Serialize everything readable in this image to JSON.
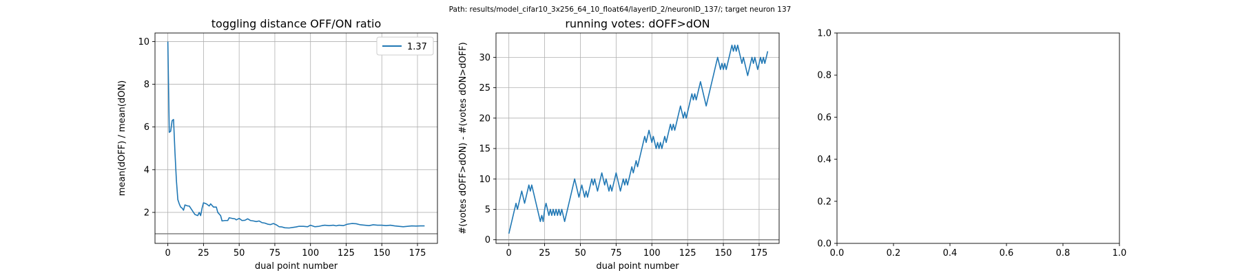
{
  "suptitle": "Path: results/model_cifar10_3x256_64_10_float64/layerID_2/neuronID_137/; target neuron 137",
  "colors": {
    "line": "#1f77b4",
    "grid": "#b0b0b0",
    "hline": "#808080",
    "axis": "#000000"
  },
  "chart_data": [
    {
      "type": "line",
      "title": "toggling distance OFF/ON ratio",
      "xlabel": "dual point number",
      "ylabel": "mean(dOFF) / mean(dON)",
      "xlim": [
        -9,
        189
      ],
      "ylim": [
        0.55,
        10.4
      ],
      "xticks": [
        0,
        25,
        50,
        75,
        100,
        125,
        150,
        175
      ],
      "yticks": [
        2,
        4,
        6,
        8,
        10
      ],
      "grid": true,
      "hline": 1.0,
      "legend": {
        "position": "top-right",
        "entries": [
          "1.37"
        ]
      },
      "series": [
        {
          "name": "1.37",
          "points": [
            [
              0,
              10.0
            ],
            [
              1,
              5.75
            ],
            [
              2,
              5.8
            ],
            [
              3,
              6.3
            ],
            [
              4,
              6.35
            ],
            [
              5,
              4.8
            ],
            [
              6,
              3.5
            ],
            [
              7,
              2.6
            ],
            [
              8,
              2.4
            ],
            [
              9,
              2.25
            ],
            [
              10,
              2.2
            ],
            [
              11,
              2.1
            ],
            [
              12,
              2.35
            ],
            [
              14,
              2.3
            ],
            [
              15,
              2.3
            ],
            [
              17,
              2.1
            ],
            [
              19,
              1.9
            ],
            [
              21,
              1.85
            ],
            [
              22,
              2.0
            ],
            [
              23,
              1.85
            ],
            [
              24,
              2.2
            ],
            [
              25,
              2.45
            ],
            [
              27,
              2.4
            ],
            [
              29,
              2.3
            ],
            [
              30,
              2.4
            ],
            [
              32,
              2.25
            ],
            [
              34,
              2.25
            ],
            [
              35,
              2.0
            ],
            [
              37,
              1.85
            ],
            [
              38,
              1.6
            ],
            [
              40,
              1.62
            ],
            [
              42,
              1.62
            ],
            [
              43,
              1.75
            ],
            [
              45,
              1.72
            ],
            [
              47,
              1.7
            ],
            [
              48,
              1.65
            ],
            [
              50,
              1.72
            ],
            [
              52,
              1.62
            ],
            [
              54,
              1.63
            ],
            [
              56,
              1.7
            ],
            [
              58,
              1.62
            ],
            [
              60,
              1.6
            ],
            [
              62,
              1.57
            ],
            [
              64,
              1.6
            ],
            [
              66,
              1.52
            ],
            [
              68,
              1.5
            ],
            [
              70,
              1.45
            ],
            [
              72,
              1.43
            ],
            [
              74,
              1.48
            ],
            [
              76,
              1.42
            ],
            [
              78,
              1.33
            ],
            [
              80,
              1.32
            ],
            [
              82,
              1.28
            ],
            [
              85,
              1.27
            ],
            [
              88,
              1.3
            ],
            [
              90,
              1.32
            ],
            [
              92,
              1.35
            ],
            [
              95,
              1.35
            ],
            [
              98,
              1.33
            ],
            [
              100,
              1.4
            ],
            [
              103,
              1.33
            ],
            [
              106,
              1.35
            ],
            [
              108,
              1.38
            ],
            [
              110,
              1.4
            ],
            [
              113,
              1.38
            ],
            [
              116,
              1.4
            ],
            [
              118,
              1.37
            ],
            [
              120,
              1.4
            ],
            [
              123,
              1.38
            ],
            [
              126,
              1.45
            ],
            [
              129,
              1.48
            ],
            [
              132,
              1.47
            ],
            [
              135,
              1.42
            ],
            [
              138,
              1.4
            ],
            [
              141,
              1.38
            ],
            [
              144,
              1.42
            ],
            [
              147,
              1.4
            ],
            [
              150,
              1.4
            ],
            [
              153,
              1.38
            ],
            [
              156,
              1.4
            ],
            [
              159,
              1.37
            ],
            [
              162,
              1.35
            ],
            [
              165,
              1.33
            ],
            [
              168,
              1.35
            ],
            [
              171,
              1.37
            ],
            [
              174,
              1.36
            ],
            [
              177,
              1.37
            ],
            [
              180,
              1.37
            ]
          ]
        }
      ]
    },
    {
      "type": "line",
      "title": "running votes: dOFF>dON",
      "xlabel": "dual point number",
      "ylabel": "#(votes dOFF>dON) - #(votes dON>dOFF)",
      "xlim": [
        -9,
        189
      ],
      "ylim": [
        -0.6,
        34
      ],
      "xticks": [
        0,
        25,
        50,
        75,
        100,
        125,
        150,
        175
      ],
      "yticks": [
        0,
        5,
        10,
        15,
        20,
        25,
        30
      ],
      "grid": true,
      "hline": 0,
      "series": [
        {
          "points": [
            [
              0,
              1
            ],
            [
              2,
              3
            ],
            [
              4,
              5
            ],
            [
              5,
              6
            ],
            [
              6,
              5
            ],
            [
              7,
              6
            ],
            [
              8,
              7
            ],
            [
              9,
              8
            ],
            [
              10,
              7
            ],
            [
              11,
              6
            ],
            [
              12,
              7
            ],
            [
              13,
              8
            ],
            [
              14,
              9
            ],
            [
              15,
              8
            ],
            [
              16,
              9
            ],
            [
              17,
              8
            ],
            [
              18,
              7
            ],
            [
              19,
              6
            ],
            [
              20,
              5
            ],
            [
              21,
              4
            ],
            [
              22,
              3
            ],
            [
              23,
              4
            ],
            [
              24,
              3
            ],
            [
              25,
              5
            ],
            [
              26,
              6
            ],
            [
              27,
              5
            ],
            [
              28,
              4
            ],
            [
              29,
              5
            ],
            [
              30,
              4
            ],
            [
              31,
              5
            ],
            [
              32,
              4
            ],
            [
              33,
              5
            ],
            [
              34,
              4
            ],
            [
              35,
              5
            ],
            [
              36,
              4
            ],
            [
              37,
              5
            ],
            [
              38,
              4
            ],
            [
              39,
              3
            ],
            [
              40,
              4
            ],
            [
              41,
              5
            ],
            [
              42,
              6
            ],
            [
              43,
              7
            ],
            [
              44,
              8
            ],
            [
              45,
              9
            ],
            [
              46,
              10
            ],
            [
              47,
              9
            ],
            [
              48,
              8
            ],
            [
              49,
              7
            ],
            [
              50,
              8
            ],
            [
              51,
              9
            ],
            [
              52,
              8
            ],
            [
              53,
              7
            ],
            [
              54,
              8
            ],
            [
              55,
              7
            ],
            [
              56,
              8
            ],
            [
              57,
              9
            ],
            [
              58,
              10
            ],
            [
              59,
              9
            ],
            [
              60,
              10
            ],
            [
              61,
              9
            ],
            [
              62,
              8
            ],
            [
              63,
              9
            ],
            [
              64,
              10
            ],
            [
              65,
              11
            ],
            [
              66,
              10
            ],
            [
              67,
              9
            ],
            [
              68,
              10
            ],
            [
              69,
              9
            ],
            [
              70,
              8
            ],
            [
              71,
              9
            ],
            [
              72,
              8
            ],
            [
              73,
              9
            ],
            [
              74,
              10
            ],
            [
              75,
              11
            ],
            [
              76,
              10
            ],
            [
              77,
              9
            ],
            [
              78,
              8
            ],
            [
              79,
              9
            ],
            [
              80,
              10
            ],
            [
              81,
              9
            ],
            [
              82,
              10
            ],
            [
              83,
              9
            ],
            [
              84,
              10
            ],
            [
              85,
              11
            ],
            [
              86,
              12
            ],
            [
              87,
              11
            ],
            [
              88,
              12
            ],
            [
              89,
              13
            ],
            [
              90,
              12
            ],
            [
              91,
              13
            ],
            [
              92,
              14
            ],
            [
              93,
              15
            ],
            [
              94,
              16
            ],
            [
              95,
              17
            ],
            [
              96,
              16
            ],
            [
              97,
              17
            ],
            [
              98,
              18
            ],
            [
              99,
              17
            ],
            [
              100,
              16
            ],
            [
              101,
              17
            ],
            [
              102,
              16
            ],
            [
              103,
              15
            ],
            [
              104,
              16
            ],
            [
              105,
              15
            ],
            [
              106,
              16
            ],
            [
              107,
              15
            ],
            [
              108,
              16
            ],
            [
              109,
              17
            ],
            [
              110,
              16
            ],
            [
              111,
              17
            ],
            [
              112,
              18
            ],
            [
              113,
              19
            ],
            [
              114,
              18
            ],
            [
              115,
              19
            ],
            [
              116,
              18
            ],
            [
              117,
              19
            ],
            [
              118,
              20
            ],
            [
              119,
              21
            ],
            [
              120,
              22
            ],
            [
              121,
              21
            ],
            [
              122,
              20
            ],
            [
              123,
              21
            ],
            [
              124,
              20
            ],
            [
              125,
              21
            ],
            [
              126,
              22
            ],
            [
              127,
              23
            ],
            [
              128,
              24
            ],
            [
              129,
              23
            ],
            [
              130,
              24
            ],
            [
              131,
              23
            ],
            [
              132,
              24
            ],
            [
              133,
              25
            ],
            [
              134,
              26
            ],
            [
              135,
              25
            ],
            [
              136,
              24
            ],
            [
              137,
              23
            ],
            [
              138,
              22
            ],
            [
              139,
              23
            ],
            [
              140,
              24
            ],
            [
              141,
              25
            ],
            [
              142,
              26
            ],
            [
              143,
              27
            ],
            [
              144,
              28
            ],
            [
              145,
              29
            ],
            [
              146,
              30
            ],
            [
              147,
              29
            ],
            [
              148,
              28
            ],
            [
              149,
              29
            ],
            [
              150,
              28
            ],
            [
              151,
              29
            ],
            [
              152,
              28
            ],
            [
              153,
              29
            ],
            [
              154,
              30
            ],
            [
              155,
              31
            ],
            [
              156,
              32
            ],
            [
              157,
              31
            ],
            [
              158,
              32
            ],
            [
              159,
              31
            ],
            [
              160,
              32
            ],
            [
              161,
              31
            ],
            [
              162,
              30
            ],
            [
              163,
              29
            ],
            [
              164,
              30
            ],
            [
              165,
              29
            ],
            [
              166,
              28
            ],
            [
              167,
              27
            ],
            [
              168,
              28
            ],
            [
              169,
              29
            ],
            [
              170,
              30
            ],
            [
              171,
              29
            ],
            [
              172,
              30
            ],
            [
              173,
              29
            ],
            [
              174,
              28
            ],
            [
              175,
              29
            ],
            [
              176,
              30
            ],
            [
              177,
              29
            ],
            [
              178,
              30
            ],
            [
              179,
              29
            ],
            [
              180,
              30
            ],
            [
              181,
              31
            ]
          ]
        }
      ]
    },
    {
      "type": "line",
      "title": "",
      "xlabel": "",
      "ylabel": "",
      "xlim": [
        0,
        1
      ],
      "ylim": [
        0,
        1
      ],
      "xticks": [
        0.0,
        0.2,
        0.4,
        0.6,
        0.8,
        1.0
      ],
      "yticks": [
        0.0,
        0.2,
        0.4,
        0.6,
        0.8,
        1.0
      ],
      "xticklabels": [
        "0.0",
        "0.2",
        "0.4",
        "0.6",
        "0.8",
        "1.0"
      ],
      "yticklabels": [
        "0.0",
        "0.2",
        "0.4",
        "0.6",
        "0.8",
        "1.0"
      ],
      "grid": false,
      "series": []
    }
  ]
}
